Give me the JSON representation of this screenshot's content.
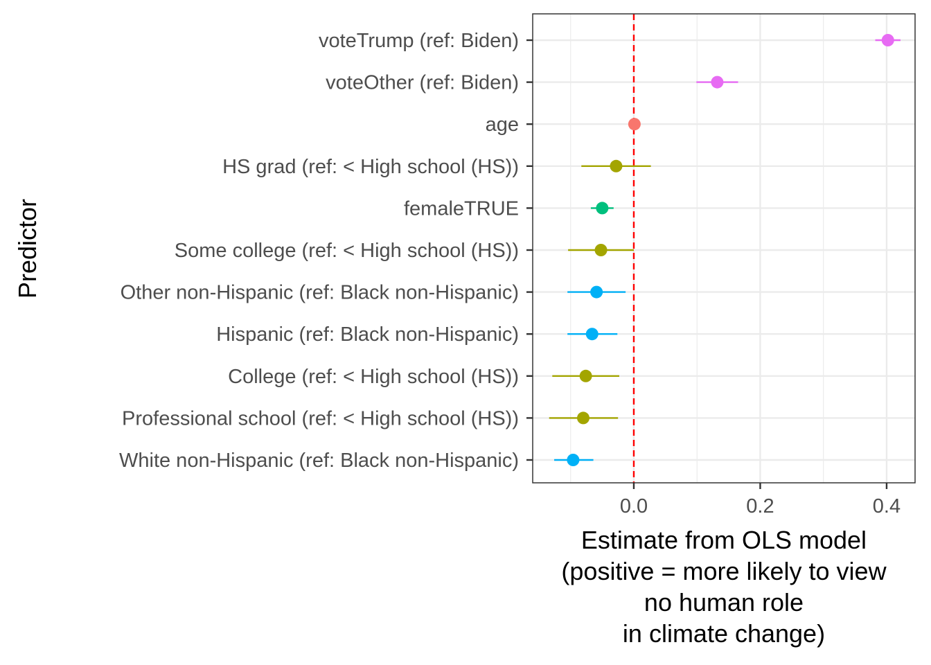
{
  "chart_data": {
    "type": "dot-errorbar",
    "xlabel_lines": [
      "Estimate from OLS model",
      "(positive = more likely to view",
      "no human role",
      "in climate change)"
    ],
    "ylabel": "Predictor",
    "xlim": [
      -0.16,
      0.445
    ],
    "x_ticks": [
      0.0,
      0.2,
      0.4
    ],
    "x_tick_labels": [
      "0.0",
      "0.2",
      "0.4"
    ],
    "reference_line": {
      "x": 0.0,
      "color": "#ff0000",
      "style": "dashed"
    },
    "grid": true,
    "legend": "none",
    "points": [
      {
        "label": "voteTrump (ref: Biden)",
        "estimate": 0.402,
        "low": 0.382,
        "high": 0.422,
        "color": "#e76bf3"
      },
      {
        "label": "voteOther (ref: Biden)",
        "estimate": 0.132,
        "low": 0.099,
        "high": 0.165,
        "color": "#e76bf3"
      },
      {
        "label": "age",
        "estimate": 0.001,
        "low": 0.0,
        "high": 0.002,
        "color": "#f8766d"
      },
      {
        "label": "HS grad (ref: < High school (HS))",
        "estimate": -0.028,
        "low": -0.083,
        "high": 0.027,
        "color": "#a3a500"
      },
      {
        "label": "femaleTRUE",
        "estimate": -0.05,
        "low": -0.068,
        "high": -0.032,
        "color": "#00bf7d"
      },
      {
        "label": "Some college (ref: < High school (HS))",
        "estimate": -0.052,
        "low": -0.104,
        "high": 0.0,
        "color": "#a3a500"
      },
      {
        "label": "Other non-Hispanic (ref: Black non-Hispanic)",
        "estimate": -0.059,
        "low": -0.105,
        "high": -0.013,
        "color": "#00b0f6"
      },
      {
        "label": "Hispanic (ref: Black non-Hispanic)",
        "estimate": -0.066,
        "low": -0.105,
        "high": -0.026,
        "color": "#00b0f6"
      },
      {
        "label": "College (ref: < High school (HS))",
        "estimate": -0.076,
        "low": -0.129,
        "high": -0.023,
        "color": "#a3a500"
      },
      {
        "label": "Professional school (ref: < High school (HS))",
        "estimate": -0.08,
        "low": -0.134,
        "high": -0.025,
        "color": "#a3a500"
      },
      {
        "label": "White non-Hispanic (ref: Black non-Hispanic)",
        "estimate": -0.096,
        "low": -0.126,
        "high": -0.064,
        "color": "#00b0f6"
      }
    ]
  }
}
